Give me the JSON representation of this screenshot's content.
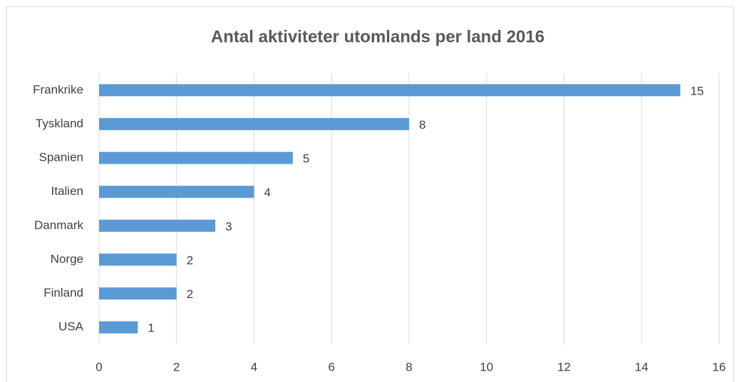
{
  "chart_data": {
    "type": "bar",
    "orientation": "horizontal",
    "title": "Antal aktiviteter utomlands per land 2016",
    "categories": [
      "Frankrike",
      "Tyskland",
      "Spanien",
      "Italien",
      "Danmark",
      "Norge",
      "Finland",
      "USA"
    ],
    "values": [
      15,
      8,
      5,
      4,
      3,
      2,
      2,
      1
    ],
    "color": "#5b9bd5",
    "xlim": [
      0,
      16
    ],
    "xticks": [
      0,
      2,
      4,
      6,
      8,
      10,
      12,
      14,
      16
    ],
    "grid": true,
    "data_labels": true
  }
}
